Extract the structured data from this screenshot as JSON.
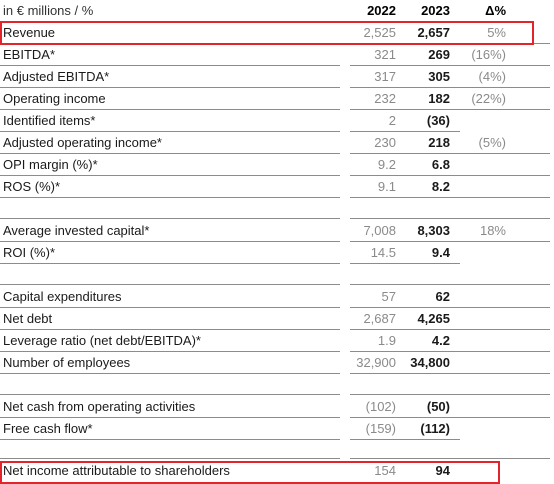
{
  "table": {
    "header": {
      "label": "in € millions / %",
      "y2022": "2022",
      "y2023": "2023",
      "delta": "Δ%"
    },
    "rows": [
      {
        "label": "Revenue",
        "y2022": "2,525",
        "y2023": "2,657",
        "delta": "5%"
      },
      {
        "label": "EBITDA*",
        "y2022": "321",
        "y2023": "269",
        "delta": "(16%)"
      },
      {
        "label": "Adjusted EBITDA*",
        "y2022": "317",
        "y2023": "305",
        "delta": "(4%)"
      },
      {
        "label": "Operating income",
        "y2022": "232",
        "y2023": "182",
        "delta": "(22%)"
      },
      {
        "label": "Identified items*",
        "y2022": "2",
        "y2023": "(36)",
        "delta": ""
      },
      {
        "label": "Adjusted operating income*",
        "y2022": "230",
        "y2023": "218",
        "delta": "(5%)"
      },
      {
        "label": "OPI margin (%)*",
        "y2022": "9.2",
        "y2023": "6.8",
        "delta": ""
      },
      {
        "label": "ROS (%)*",
        "y2022": "9.1",
        "y2023": "8.2",
        "delta": ""
      },
      {
        "label": "Average invested capital*",
        "y2022": "7,008",
        "y2023": "8,303",
        "delta": "18%"
      },
      {
        "label": "ROI (%)*",
        "y2022": "14.5",
        "y2023": "9.4",
        "delta": ""
      },
      {
        "label": "Capital expenditures",
        "y2022": "57",
        "y2023": "62",
        "delta": ""
      },
      {
        "label": "Net debt",
        "y2022": "2,687",
        "y2023": "4,265",
        "delta": ""
      },
      {
        "label": "Leverage ratio (net debt/EBITDA)*",
        "y2022": "1.9",
        "y2023": "4.2",
        "delta": ""
      },
      {
        "label": "Number of employees",
        "y2022": "32,900",
        "y2023": "34,800",
        "delta": ""
      },
      {
        "label": "Net cash from operating activities",
        "y2022": "(102)",
        "y2023": "(50)",
        "delta": ""
      },
      {
        "label": "Free cash flow*",
        "y2022": "(159)",
        "y2023": "(112)",
        "delta": ""
      },
      {
        "label": "Net income attributable to shareholders",
        "y2022": "154",
        "y2023": "94",
        "delta": ""
      }
    ]
  },
  "colors": {
    "highlight": "#e3242b",
    "rule": "#8c8c8c",
    "muted": "#8a8a8a"
  }
}
